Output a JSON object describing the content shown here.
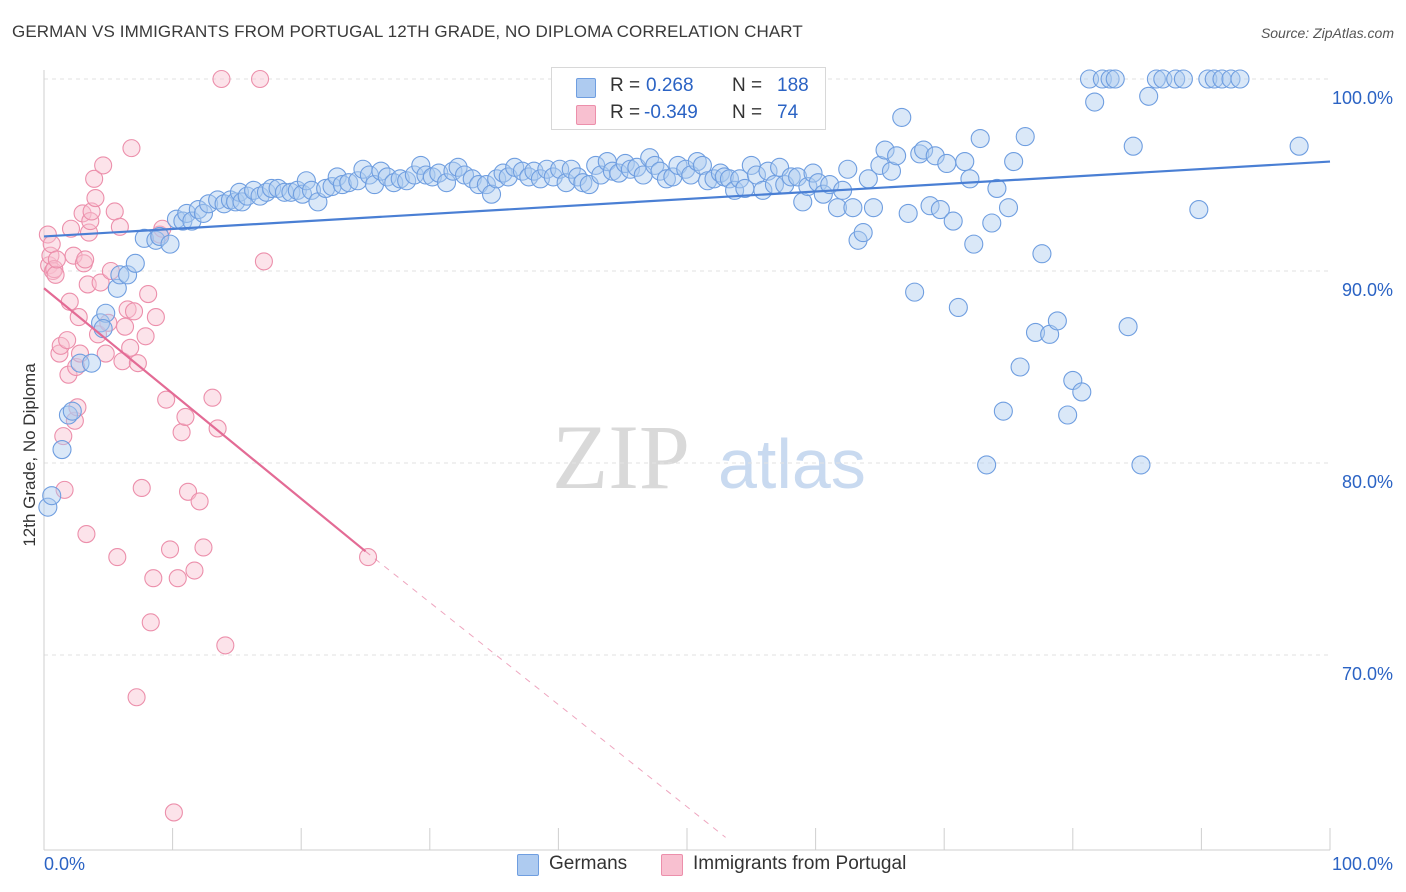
{
  "title": "GERMAN VS IMMIGRANTS FROM PORTUGAL 12TH GRADE, NO DIPLOMA CORRELATION CHART",
  "source": "Source: ZipAtlas.com",
  "watermark": {
    "zip": "ZIP",
    "atlas": "atlas"
  },
  "legend": {
    "r_label": "R =",
    "n_label": "N =",
    "series": [
      {
        "name": "Germans",
        "r": "0.268",
        "n": "188",
        "fill": "#aecbf0",
        "stroke": "#6f9ee0"
      },
      {
        "name": "Immigrants from Portugal",
        "r": "-0.349",
        "n": "74",
        "fill": "#f8c0d0",
        "stroke": "#ec8fab"
      }
    ]
  },
  "chart_data": {
    "type": "scatter",
    "title": "GERMAN VS IMMIGRANTS FROM PORTUGAL 12TH GRADE, NO DIPLOMA CORRELATION CHART",
    "xlabel": "",
    "ylabel": "12th Grade, No Diploma",
    "xlim": [
      0,
      100
    ],
    "ylim": [
      60.5,
      101.5
    ],
    "x_tick_labels": [
      "0.0%",
      "100.0%"
    ],
    "y_ticks": [
      {
        "value": 100,
        "label": "100.0%"
      },
      {
        "value": 90,
        "label": "90.0%"
      },
      {
        "value": 80,
        "label": "80.0%"
      },
      {
        "value": 70,
        "label": "70.0%"
      }
    ],
    "grid": true,
    "colors": {
      "germans": "#4a7fd4",
      "portugal": "#e36b95",
      "axis_text": "#2b63c4"
    },
    "trend_lines": [
      {
        "series": "Germans",
        "x": [
          0,
          100
        ],
        "y": [
          91.8,
          95.7
        ],
        "style": "solid"
      },
      {
        "series": "Immigrants from Portugal",
        "x": [
          0,
          25
        ],
        "y": [
          89.1,
          75.4
        ],
        "style": "solid"
      },
      {
        "series": "Immigrants from Portugal",
        "x": [
          25,
          53
        ],
        "y": [
          75.4,
          60.5
        ],
        "style": "dashed"
      }
    ],
    "series": [
      {
        "name": "Germans",
        "points": [
          [
            0.3,
            77.7
          ],
          [
            0.6,
            78.3
          ],
          [
            1.4,
            80.7
          ],
          [
            1.9,
            82.5
          ],
          [
            2.2,
            82.7
          ],
          [
            2.8,
            85.2
          ],
          [
            3.7,
            85.2
          ],
          [
            4.4,
            87.3
          ],
          [
            4.8,
            87.8
          ],
          [
            4.6,
            87.0
          ],
          [
            5.7,
            89.1
          ],
          [
            5.9,
            89.8
          ],
          [
            6.5,
            89.8
          ],
          [
            7.1,
            90.4
          ],
          [
            7.8,
            91.7
          ],
          [
            8.7,
            91.6
          ],
          [
            9.0,
            91.8
          ],
          [
            9.8,
            91.4
          ],
          [
            10.3,
            92.7
          ],
          [
            10.8,
            92.6
          ],
          [
            11.1,
            93.0
          ],
          [
            11.5,
            92.6
          ],
          [
            12.0,
            93.2
          ],
          [
            12.4,
            93.0
          ],
          [
            12.8,
            93.5
          ],
          [
            13.5,
            93.7
          ],
          [
            14.0,
            93.5
          ],
          [
            14.5,
            93.7
          ],
          [
            14.9,
            93.6
          ],
          [
            15.2,
            94.1
          ],
          [
            15.4,
            93.6
          ],
          [
            15.8,
            93.9
          ],
          [
            16.3,
            94.2
          ],
          [
            16.8,
            93.9
          ],
          [
            17.3,
            94.1
          ],
          [
            17.7,
            94.3
          ],
          [
            18.2,
            94.3
          ],
          [
            18.7,
            94.1
          ],
          [
            19.2,
            94.1
          ],
          [
            19.7,
            94.2
          ],
          [
            20.1,
            94.0
          ],
          [
            20.4,
            94.7
          ],
          [
            20.8,
            94.2
          ],
          [
            21.3,
            93.6
          ],
          [
            21.9,
            94.3
          ],
          [
            22.4,
            94.4
          ],
          [
            22.8,
            94.9
          ],
          [
            23.2,
            94.5
          ],
          [
            23.7,
            94.6
          ],
          [
            24.4,
            94.7
          ],
          [
            24.8,
            95.3
          ],
          [
            25.3,
            95.0
          ],
          [
            25.7,
            94.5
          ],
          [
            26.2,
            95.2
          ],
          [
            26.7,
            94.9
          ],
          [
            27.2,
            94.6
          ],
          [
            27.7,
            94.8
          ],
          [
            28.2,
            94.7
          ],
          [
            28.8,
            95.0
          ],
          [
            29.3,
            95.5
          ],
          [
            29.7,
            95.0
          ],
          [
            30.2,
            94.9
          ],
          [
            30.7,
            95.1
          ],
          [
            31.3,
            94.6
          ],
          [
            31.8,
            95.2
          ],
          [
            32.2,
            95.4
          ],
          [
            32.7,
            95.0
          ],
          [
            33.3,
            94.8
          ],
          [
            33.8,
            94.5
          ],
          [
            34.4,
            94.5
          ],
          [
            34.8,
            94.0
          ],
          [
            35.2,
            94.8
          ],
          [
            35.7,
            95.1
          ],
          [
            36.1,
            94.9
          ],
          [
            36.6,
            95.4
          ],
          [
            37.2,
            95.2
          ],
          [
            37.7,
            94.9
          ],
          [
            38.1,
            95.2
          ],
          [
            38.6,
            94.8
          ],
          [
            39.1,
            95.3
          ],
          [
            39.6,
            94.9
          ],
          [
            40.1,
            95.3
          ],
          [
            40.6,
            94.6
          ],
          [
            41.0,
            95.3
          ],
          [
            41.5,
            94.9
          ],
          [
            41.9,
            94.6
          ],
          [
            42.4,
            94.5
          ],
          [
            42.9,
            95.5
          ],
          [
            43.3,
            95.0
          ],
          [
            43.8,
            95.7
          ],
          [
            44.2,
            95.2
          ],
          [
            44.7,
            95.1
          ],
          [
            45.2,
            95.6
          ],
          [
            45.6,
            95.3
          ],
          [
            46.1,
            95.4
          ],
          [
            46.6,
            95.0
          ],
          [
            47.1,
            95.9
          ],
          [
            47.5,
            95.5
          ],
          [
            47.9,
            95.2
          ],
          [
            48.4,
            94.8
          ],
          [
            48.9,
            94.9
          ],
          [
            49.3,
            95.5
          ],
          [
            49.9,
            95.3
          ],
          [
            50.3,
            95.0
          ],
          [
            50.8,
            95.7
          ],
          [
            51.2,
            95.5
          ],
          [
            51.6,
            94.7
          ],
          [
            52.1,
            94.8
          ],
          [
            52.6,
            95.1
          ],
          [
            52.9,
            94.9
          ],
          [
            53.3,
            94.8
          ],
          [
            53.7,
            94.2
          ],
          [
            54.1,
            94.8
          ],
          [
            54.5,
            94.3
          ],
          [
            55.0,
            95.5
          ],
          [
            55.4,
            95.0
          ],
          [
            55.9,
            94.2
          ],
          [
            56.3,
            95.2
          ],
          [
            56.8,
            94.5
          ],
          [
            57.2,
            95.4
          ],
          [
            57.6,
            94.5
          ],
          [
            58.1,
            94.9
          ],
          [
            58.6,
            94.9
          ],
          [
            59.0,
            93.6
          ],
          [
            59.4,
            94.4
          ],
          [
            59.8,
            95.1
          ],
          [
            60.2,
            94.6
          ],
          [
            60.6,
            94.0
          ],
          [
            61.1,
            94.5
          ],
          [
            61.7,
            93.3
          ],
          [
            62.1,
            94.2
          ],
          [
            62.5,
            95.3
          ],
          [
            62.9,
            93.3
          ],
          [
            63.3,
            91.6
          ],
          [
            63.7,
            92.0
          ],
          [
            64.1,
            94.8
          ],
          [
            64.5,
            93.3
          ],
          [
            65.0,
            95.5
          ],
          [
            65.4,
            96.3
          ],
          [
            65.9,
            95.2
          ],
          [
            66.3,
            96.0
          ],
          [
            66.7,
            98.0
          ],
          [
            67.2,
            93.0
          ],
          [
            67.7,
            88.9
          ],
          [
            68.1,
            96.1
          ],
          [
            68.4,
            96.3
          ],
          [
            68.9,
            93.4
          ],
          [
            69.3,
            96.0
          ],
          [
            69.7,
            93.2
          ],
          [
            70.2,
            95.6
          ],
          [
            70.7,
            92.6
          ],
          [
            71.1,
            88.1
          ],
          [
            71.6,
            95.7
          ],
          [
            72.0,
            94.8
          ],
          [
            72.3,
            91.4
          ],
          [
            72.8,
            96.9
          ],
          [
            73.3,
            79.9
          ],
          [
            73.7,
            92.5
          ],
          [
            74.1,
            94.3
          ],
          [
            74.6,
            82.7
          ],
          [
            75.0,
            93.3
          ],
          [
            75.4,
            95.7
          ],
          [
            75.9,
            85.0
          ],
          [
            76.3,
            97.0
          ],
          [
            77.1,
            86.8
          ],
          [
            77.6,
            90.9
          ],
          [
            78.2,
            86.7
          ],
          [
            78.8,
            87.4
          ],
          [
            79.6,
            82.5
          ],
          [
            80.0,
            84.3
          ],
          [
            80.7,
            83.7
          ],
          [
            81.3,
            100.0
          ],
          [
            81.7,
            98.8
          ],
          [
            82.3,
            100.0
          ],
          [
            82.9,
            100.0
          ],
          [
            83.3,
            100.0
          ],
          [
            84.3,
            87.1
          ],
          [
            84.7,
            96.5
          ],
          [
            85.3,
            79.9
          ],
          [
            85.9,
            99.1
          ],
          [
            86.5,
            100.0
          ],
          [
            87.0,
            100.0
          ],
          [
            88.0,
            100.0
          ],
          [
            88.6,
            100.0
          ],
          [
            89.8,
            93.2
          ],
          [
            90.5,
            100.0
          ],
          [
            91.0,
            100.0
          ],
          [
            91.6,
            100.0
          ],
          [
            92.3,
            100.0
          ],
          [
            93.0,
            100.0
          ],
          [
            97.6,
            96.5
          ]
        ]
      },
      {
        "name": "Immigrants from Portugal",
        "points": [
          [
            0.3,
            91.9
          ],
          [
            0.4,
            90.3
          ],
          [
            0.5,
            90.8
          ],
          [
            0.6,
            91.4
          ],
          [
            0.7,
            90.0
          ],
          [
            0.8,
            90.1
          ],
          [
            0.9,
            89.8
          ],
          [
            1.0,
            90.6
          ],
          [
            1.2,
            85.7
          ],
          [
            1.3,
            86.1
          ],
          [
            1.5,
            81.4
          ],
          [
            1.6,
            78.6
          ],
          [
            1.8,
            86.4
          ],
          [
            1.9,
            84.6
          ],
          [
            2.0,
            88.4
          ],
          [
            2.1,
            92.2
          ],
          [
            2.3,
            90.8
          ],
          [
            2.4,
            82.2
          ],
          [
            2.5,
            85.0
          ],
          [
            2.6,
            82.9
          ],
          [
            2.7,
            87.6
          ],
          [
            2.8,
            85.7
          ],
          [
            3.0,
            93.0
          ],
          [
            3.1,
            90.4
          ],
          [
            3.2,
            90.6
          ],
          [
            3.3,
            76.3
          ],
          [
            3.4,
            89.3
          ],
          [
            3.5,
            92.0
          ],
          [
            3.6,
            92.6
          ],
          [
            3.7,
            93.1
          ],
          [
            3.9,
            94.8
          ],
          [
            4.0,
            93.8
          ],
          [
            4.2,
            86.7
          ],
          [
            4.4,
            89.4
          ],
          [
            4.6,
            95.5
          ],
          [
            4.8,
            85.7
          ],
          [
            5.0,
            87.3
          ],
          [
            5.2,
            90.0
          ],
          [
            5.5,
            93.1
          ],
          [
            5.7,
            75.1
          ],
          [
            5.9,
            92.3
          ],
          [
            6.1,
            85.3
          ],
          [
            6.3,
            87.1
          ],
          [
            6.5,
            88.0
          ],
          [
            6.7,
            86.0
          ],
          [
            7.0,
            87.9
          ],
          [
            7.3,
            85.2
          ],
          [
            7.6,
            78.7
          ],
          [
            7.9,
            86.6
          ],
          [
            8.1,
            88.8
          ],
          [
            8.3,
            71.7
          ],
          [
            8.5,
            74.0
          ],
          [
            8.7,
            87.6
          ],
          [
            9.0,
            91.9
          ],
          [
            9.2,
            92.2
          ],
          [
            9.5,
            83.3
          ],
          [
            9.8,
            75.5
          ],
          [
            10.4,
            74.0
          ],
          [
            10.7,
            81.6
          ],
          [
            11.0,
            82.4
          ],
          [
            11.2,
            78.5
          ],
          [
            11.7,
            74.4
          ],
          [
            12.1,
            78.0
          ],
          [
            12.4,
            75.6
          ],
          [
            13.1,
            83.4
          ],
          [
            13.5,
            81.8
          ],
          [
            14.1,
            70.5
          ],
          [
            13.8,
            100.0
          ],
          [
            16.8,
            100.0
          ],
          [
            17.1,
            90.5
          ],
          [
            25.2,
            75.1
          ],
          [
            6.8,
            96.4
          ],
          [
            10.1,
            61.8
          ],
          [
            7.2,
            67.8
          ]
        ]
      }
    ]
  }
}
